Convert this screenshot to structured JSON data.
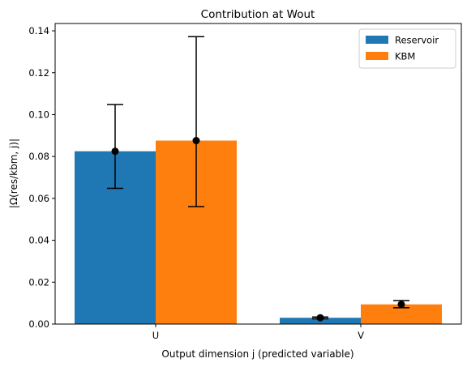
{
  "chart_data": {
    "type": "bar",
    "title": "Contribution at Wout",
    "xlabel": "Output dimension j (predicted variable)",
    "ylabel": "|Ω(res/kbm, j)|",
    "categories": [
      "U",
      "V"
    ],
    "ylim": [
      0,
      0.1435
    ],
    "yticks": [
      0.0,
      0.02,
      0.04,
      0.06,
      0.08,
      0.1,
      0.12,
      0.14
    ],
    "ytick_labels": [
      "0.00",
      "0.02",
      "0.04",
      "0.06",
      "0.08",
      "0.10",
      "0.12",
      "0.14"
    ],
    "legend_position": "upper-right",
    "grid": false,
    "series": [
      {
        "name": "Reservoir",
        "color": "#1f77b4",
        "values": [
          0.0825,
          0.003
        ],
        "means": [
          0.0825,
          0.003
        ],
        "err_low": [
          0.0648,
          0.0025
        ],
        "err_high": [
          0.1048,
          0.0034
        ]
      },
      {
        "name": "KBM",
        "color": "#ff7f0e",
        "values": [
          0.0876,
          0.0094
        ],
        "means": [
          0.0876,
          0.0094
        ],
        "err_low": [
          0.0561,
          0.0078
        ],
        "err_high": [
          0.1372,
          0.0112
        ]
      }
    ]
  }
}
